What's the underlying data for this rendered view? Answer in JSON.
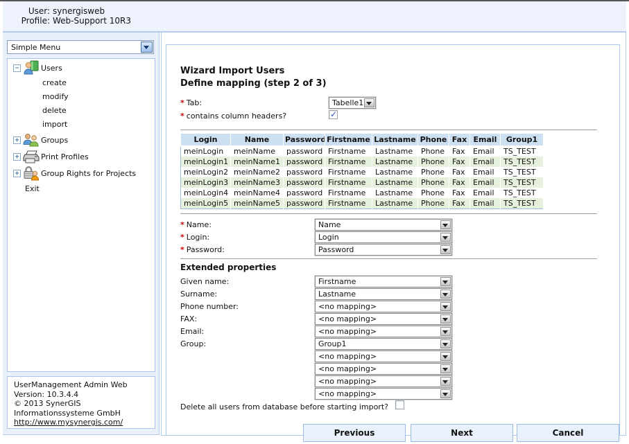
{
  "header": {
    "user_label": "User:",
    "user_value": "synergisweb",
    "profile_label": "Profile:",
    "profile_value": "Web-Support 10R3"
  },
  "sidebar": {
    "menu": {
      "selected": "Simple Menu"
    },
    "tree": [
      {
        "label": "Users",
        "icon": "users-icon",
        "state": "expanded",
        "children": [
          "create",
          "modify",
          "delete",
          "import"
        ]
      },
      {
        "label": "Groups",
        "icon": "groups-icon",
        "state": "collapsed",
        "children": []
      },
      {
        "label": "Print Profiles",
        "icon": "printer-icon",
        "state": "collapsed",
        "children": []
      },
      {
        "label": "Group Rights for Projects",
        "icon": "lock-user-icon",
        "state": "collapsed",
        "children": []
      },
      {
        "label": "Exit",
        "icon": "",
        "state": "none",
        "children": []
      }
    ],
    "about": {
      "product": "UserManagement Admin Web",
      "version": "Version: 10.3.4.4",
      "copyright": "© 2013 SynerGIS",
      "company": "Informationssysteme GmbH",
      "link": "http://www.mysynergis.com/"
    }
  },
  "main": {
    "title": "Wizard Import Users",
    "subtitle": "Define mapping (step 2 of 3)",
    "fields": {
      "tab": {
        "required": true,
        "label": "Tab:",
        "value": "Tabelle1"
      },
      "contains_headers": {
        "required": true,
        "label": "contains column headers?",
        "checked": true
      },
      "delete_before_import": {
        "label": "Delete all users from database before starting import?",
        "checked": false
      }
    },
    "preview_table": {
      "columns": [
        "Login",
        "Name",
        "Password",
        "Firstname",
        "Lastname",
        "Phone",
        "Fax",
        "Email",
        "Group1"
      ],
      "rows": [
        [
          "meinLogin",
          "meinName",
          "password",
          "Firstname",
          "Lastname",
          "Phone",
          "Fax",
          "Email",
          "TS_TEST"
        ],
        [
          "meinLogin1",
          "meinName1",
          "password",
          "Firstname",
          "Lastname",
          "Phone",
          "Fax",
          "Email",
          "TS_TEST"
        ],
        [
          "meinLogin2",
          "meinName2",
          "password",
          "Firstname",
          "Lastname",
          "Phone",
          "Fax",
          "Email",
          "TS_TEST"
        ],
        [
          "meinLogin3",
          "meinName3",
          "password",
          "Firstname",
          "Lastname",
          "Phone",
          "Fax",
          "Email",
          "TS_TEST"
        ],
        [
          "meinLogin4",
          "meinName4",
          "password",
          "Firstname",
          "Lastname",
          "Phone",
          "Fax",
          "Email",
          "TS_TEST"
        ],
        [
          "meinLogin5",
          "meinName5",
          "password",
          "Firstname",
          "Lastname",
          "Phone",
          "Fax",
          "Email",
          "TS_TEST"
        ]
      ]
    },
    "required_mappings": [
      {
        "label": "Name:",
        "value": "Name"
      },
      {
        "label": "Login:",
        "value": "Login"
      },
      {
        "label": "Password:",
        "value": "Password"
      }
    ],
    "extended_section_title": "Extended properties",
    "extended_mappings": [
      {
        "label": "Given name:",
        "value": "Firstname"
      },
      {
        "label": "Surname:",
        "value": "Lastname"
      },
      {
        "label": "Phone number:",
        "value": "<no mapping>"
      },
      {
        "label": "FAX:",
        "value": "<no mapping>"
      },
      {
        "label": "Email:",
        "value": "<no mapping>"
      },
      {
        "label": "Group:",
        "value": "Group1"
      },
      {
        "label": "",
        "value": "<no mapping>"
      },
      {
        "label": "",
        "value": "<no mapping>"
      },
      {
        "label": "",
        "value": "<no mapping>"
      },
      {
        "label": "",
        "value": "<no mapping>"
      }
    ],
    "buttons": [
      {
        "label": "Previous"
      },
      {
        "label": "Next"
      },
      {
        "label": "Cancel"
      }
    ]
  },
  "colors": {
    "panel_border": "#a9c7ee",
    "band_bg": "#edf2fc",
    "table_header_bg": "#cde0f2",
    "row_alt_bg": "#e5f1dd",
    "button_bg": "#e9f1fc",
    "required_star": "#d40000",
    "check_color": "#3353c4"
  }
}
